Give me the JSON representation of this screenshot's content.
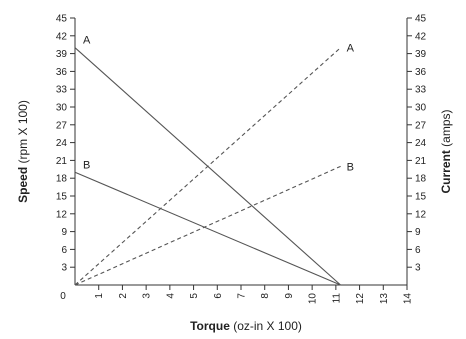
{
  "chart_data": {
    "type": "line",
    "xlabel": {
      "bold": "Torque",
      "rest": " (oz-in X 100)"
    },
    "ylabel_left": {
      "bold": "Speed",
      "rest": " (rpm X 100)"
    },
    "ylabel_right": {
      "bold": "Current",
      "rest": " (amps)"
    },
    "xlim": [
      0,
      14
    ],
    "ylim_left": [
      0,
      45
    ],
    "ylim_right": [
      0,
      45
    ],
    "x_ticks": [
      1,
      2,
      3,
      4,
      5,
      6,
      7,
      8,
      9,
      10,
      11,
      12,
      13,
      14
    ],
    "y_ticks_left": [
      3,
      6,
      9,
      12,
      15,
      18,
      21,
      24,
      27,
      30,
      33,
      36,
      39,
      42,
      45
    ],
    "y_ticks_right": [
      3,
      6,
      9,
      12,
      15,
      18,
      21,
      24,
      27,
      30,
      33,
      36,
      39,
      42,
      45
    ],
    "origin_label": "0",
    "grid": false,
    "series": [
      {
        "name": "A",
        "axis": "left",
        "style": "solid",
        "x": [
          0,
          11.2
        ],
        "y": [
          40,
          0
        ]
      },
      {
        "name": "B",
        "axis": "left",
        "style": "solid",
        "x": [
          0,
          11.2
        ],
        "y": [
          19,
          0
        ]
      },
      {
        "name": "A",
        "axis": "right",
        "style": "dashed",
        "x": [
          0,
          11.2
        ],
        "y": [
          0,
          40
        ]
      },
      {
        "name": "B",
        "axis": "right",
        "style": "dashed",
        "x": [
          0,
          11.2
        ],
        "y": [
          0,
          20
        ]
      }
    ],
    "colors": {
      "axis": "#333333",
      "line": "#555555",
      "text": "#222222"
    }
  }
}
